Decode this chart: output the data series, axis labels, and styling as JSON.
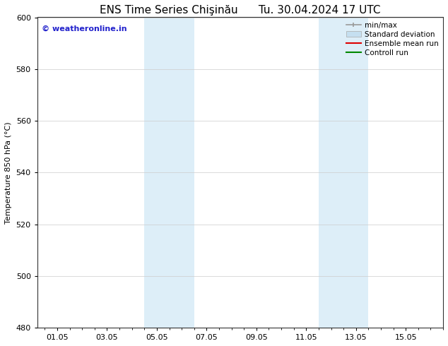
{
  "title": "ENS Time Series Chişinău      Tu. 30.04.2024 17 UTC",
  "ylabel": "Temperature 850 hPa (°C)",
  "ylim": [
    480,
    600
  ],
  "yticks": [
    480,
    500,
    520,
    540,
    560,
    580,
    600
  ],
  "xtick_labels": [
    "01.05",
    "03.05",
    "05.05",
    "07.05",
    "09.05",
    "11.05",
    "13.05",
    "15.05"
  ],
  "xtick_positions": [
    0,
    2,
    4,
    6,
    8,
    10,
    12,
    14
  ],
  "xlim": [
    -0.8,
    15.5
  ],
  "shaded_bands": [
    {
      "x_start": 3.5,
      "x_end": 5.5,
      "color": "#ddeef8"
    },
    {
      "x_start": 10.5,
      "x_end": 12.5,
      "color": "#ddeef8"
    }
  ],
  "watermark_text": "© weatheronline.in",
  "watermark_color": "#2222cc",
  "legend_items": [
    {
      "label": "min/max",
      "color": "#999999",
      "lw": 1.2,
      "style": "minmax"
    },
    {
      "label": "Standard deviation",
      "color": "#c5dff0",
      "lw": 8,
      "style": "rect"
    },
    {
      "label": "Ensemble mean run",
      "color": "#dd0000",
      "lw": 1.5,
      "style": "line"
    },
    {
      "label": "Controll run",
      "color": "#008800",
      "lw": 1.5,
      "style": "line"
    }
  ],
  "bg_color": "#ffffff",
  "plot_bg_color": "#ffffff",
  "title_fontsize": 11,
  "axis_fontsize": 8,
  "tick_fontsize": 8,
  "legend_fontsize": 7.5
}
